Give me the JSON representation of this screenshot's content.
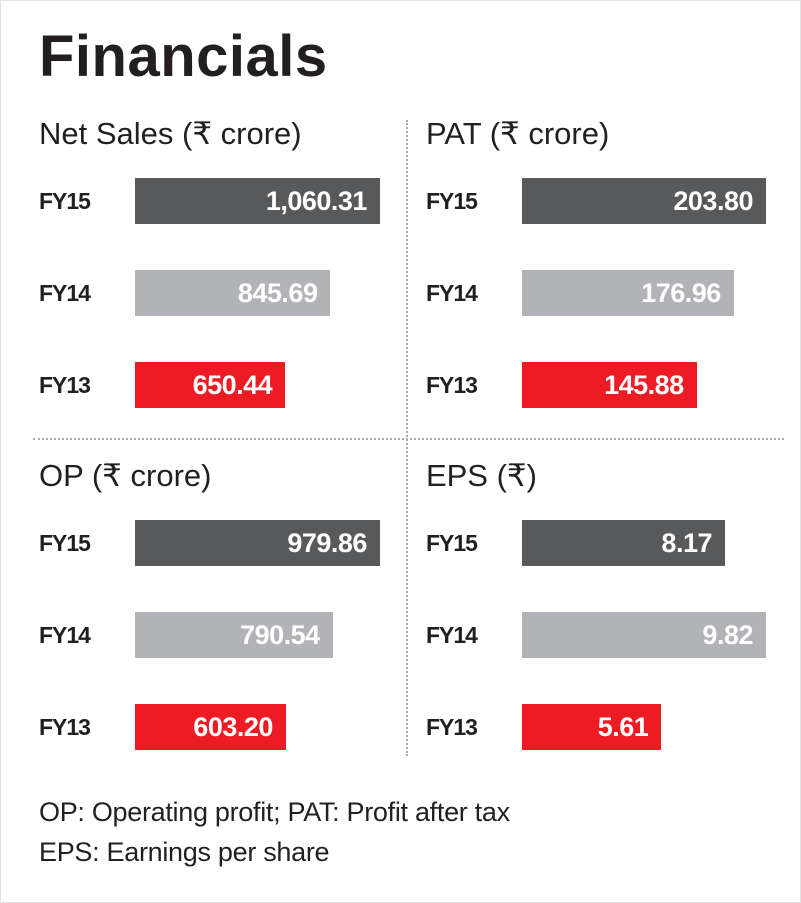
{
  "title": "Financials",
  "colors": {
    "fy15": "#58595b",
    "fy14": "#b1b3b6",
    "fy13": "#ed1c24"
  },
  "footnotes": [
    "OP: Operating profit; PAT: Profit after tax",
    "EPS: Earnings per share"
  ],
  "chart_data": [
    {
      "type": "bar",
      "title": "Net Sales (₹ crore)",
      "orientation": "horizontal",
      "categories": [
        "FY15",
        "FY14",
        "FY13"
      ],
      "values": [
        1060.31,
        845.69,
        650.44
      ],
      "value_labels": [
        "1,060.31",
        "845.69",
        "650.44"
      ],
      "bar_colors": [
        "#58595b",
        "#b1b3b6",
        "#ed1c24"
      ]
    },
    {
      "type": "bar",
      "title": "PAT (₹ crore)",
      "orientation": "horizontal",
      "categories": [
        "FY15",
        "FY14",
        "FY13"
      ],
      "values": [
        203.8,
        176.96,
        145.88
      ],
      "value_labels": [
        "203.80",
        "176.96",
        "145.88"
      ],
      "bar_colors": [
        "#58595b",
        "#b1b3b6",
        "#ed1c24"
      ]
    },
    {
      "type": "bar",
      "title": "OP (₹ crore)",
      "orientation": "horizontal",
      "categories": [
        "FY15",
        "FY14",
        "FY13"
      ],
      "values": [
        979.86,
        790.54,
        603.2
      ],
      "value_labels": [
        "979.86",
        "790.54",
        "603.20"
      ],
      "bar_colors": [
        "#58595b",
        "#b1b3b6",
        "#ed1c24"
      ]
    },
    {
      "type": "bar",
      "title": "EPS (₹)",
      "orientation": "horizontal",
      "categories": [
        "FY15",
        "FY14",
        "FY13"
      ],
      "values": [
        8.17,
        9.82,
        5.61
      ],
      "value_labels": [
        "8.17",
        "9.82",
        "5.61"
      ],
      "bar_colors": [
        "#58595b",
        "#b1b3b6",
        "#ed1c24"
      ]
    }
  ]
}
